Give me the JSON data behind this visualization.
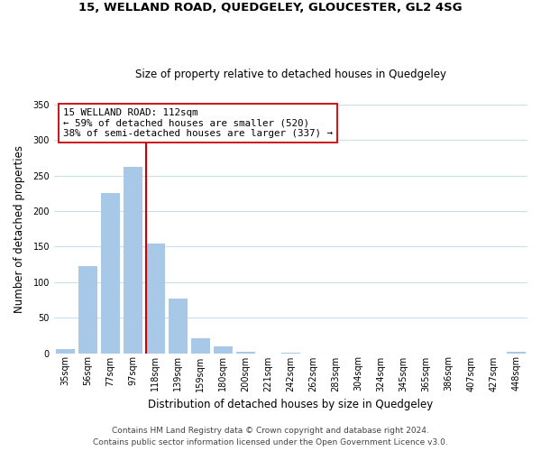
{
  "title1": "15, WELLAND ROAD, QUEDGELEY, GLOUCESTER, GL2 4SG",
  "title2": "Size of property relative to detached houses in Quedgeley",
  "xlabel": "Distribution of detached houses by size in Quedgeley",
  "ylabel": "Number of detached properties",
  "bar_labels": [
    "35sqm",
    "56sqm",
    "77sqm",
    "97sqm",
    "118sqm",
    "139sqm",
    "159sqm",
    "180sqm",
    "200sqm",
    "221sqm",
    "242sqm",
    "262sqm",
    "283sqm",
    "304sqm",
    "324sqm",
    "345sqm",
    "365sqm",
    "386sqm",
    "407sqm",
    "427sqm",
    "448sqm"
  ],
  "bar_values": [
    6,
    123,
    225,
    262,
    154,
    77,
    21,
    9,
    2,
    0,
    1,
    0,
    0,
    0,
    0,
    0,
    0,
    0,
    0,
    0,
    2
  ],
  "bar_color": "#a8c8e8",
  "marker_line_color": "#cc0000",
  "marker_bar_index": 4,
  "annotation_line1": "15 WELLAND ROAD: 112sqm",
  "annotation_line2": "← 59% of detached houses are smaller (520)",
  "annotation_line3": "38% of semi-detached houses are larger (337) →",
  "annotation_box_color": "#ffffff",
  "annotation_box_edgecolor": "#cc0000",
  "ylim": [
    0,
    350
  ],
  "yticks": [
    0,
    50,
    100,
    150,
    200,
    250,
    300,
    350
  ],
  "footer1": "Contains HM Land Registry data © Crown copyright and database right 2024.",
  "footer2": "Contains public sector information licensed under the Open Government Licence v3.0.",
  "background_color": "#ffffff",
  "grid_color": "#c8dff0",
  "title1_fontsize": 9.5,
  "title2_fontsize": 8.5,
  "xlabel_fontsize": 8.5,
  "ylabel_fontsize": 8.5,
  "tick_fontsize": 7.0,
  "annotation_fontsize": 7.8,
  "footer_fontsize": 6.5
}
